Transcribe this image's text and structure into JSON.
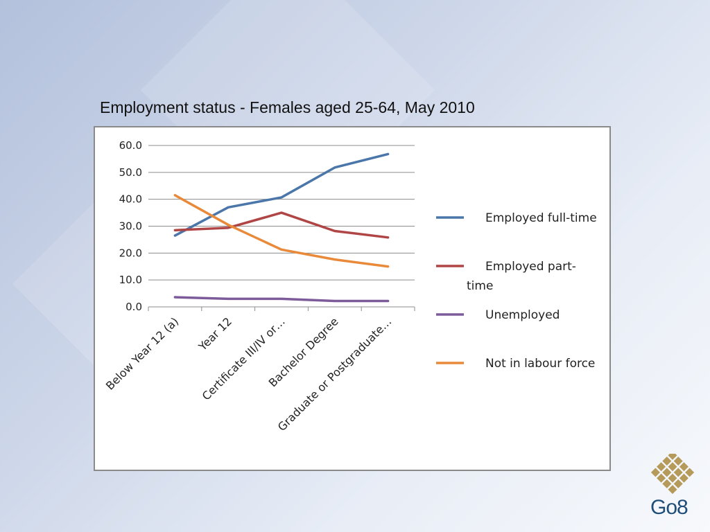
{
  "chart_data": {
    "type": "line",
    "title": "Employment status - Females aged 25-64, May 2010",
    "categories": [
      "Below Year 12 (a)",
      "Year 12",
      "Certificate III/IV or…",
      "Bachelor Degree",
      "Graduate or Postgraduate…"
    ],
    "ylim": [
      0,
      60
    ],
    "yticks": [
      "0.0",
      "10.0",
      "20.0",
      "30.0",
      "40.0",
      "50.0",
      "60.0"
    ],
    "grid": true,
    "legend_position": "right",
    "series": [
      {
        "name": "Employed full-time",
        "color": "#4a76aa",
        "values": [
          26.5,
          37.0,
          40.7,
          51.8,
          56.8
        ]
      },
      {
        "name": "Employed part-time",
        "color": "#b04545",
        "values": [
          28.5,
          29.4,
          35.0,
          28.2,
          25.8
        ]
      },
      {
        "name": "Unemployed",
        "color": "#7d5a9a",
        "values": [
          3.6,
          3.0,
          3.0,
          2.2,
          2.2
        ]
      },
      {
        "name": "Not in labour force",
        "color": "#e88a3a",
        "values": [
          41.5,
          30.5,
          21.3,
          17.6,
          15.0
        ]
      }
    ]
  },
  "logo": {
    "text": "Go8",
    "color": "#b59a5a"
  }
}
